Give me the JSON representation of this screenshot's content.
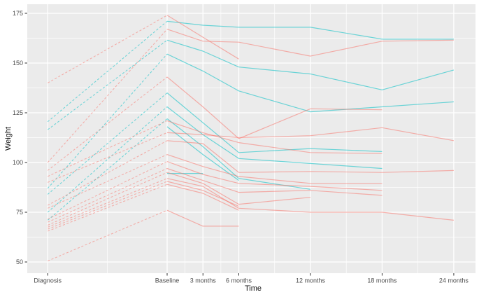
{
  "chart_data": {
    "type": "line",
    "title": "",
    "xlabel": "Time",
    "ylabel": "Weight",
    "x_categories": [
      "Diagnosis",
      "Baseline",
      "3 months",
      "6 months",
      "12 months",
      "18 months",
      "24 months"
    ],
    "x_months": [
      -10,
      0,
      3,
      6,
      12,
      18,
      24
    ],
    "yticks": [
      50,
      75,
      100,
      125,
      150,
      175
    ],
    "ylim": [
      44,
      180
    ],
    "grid": "major-and-minor-white-on-grey",
    "legend": "none",
    "line_style_note": "dashed between Diagnosis and Baseline, solid afterwards; missing values end the line",
    "colors": {
      "teal": "#00BFC4",
      "red": "#F8766D",
      "panel_bg": "#EBEBEB",
      "grid": "#FFFFFF",
      "tick_text": "#4d4d4d",
      "axis_title": "#111111"
    },
    "series": [
      {
        "name": "teal-1",
        "color": "teal",
        "values": [
          120.5,
          171,
          169,
          168,
          168,
          162,
          162
        ]
      },
      {
        "name": "teal-2",
        "color": "teal",
        "values": [
          116.5,
          161.5,
          156,
          148,
          144.5,
          136.5,
          146.5
        ]
      },
      {
        "name": "teal-3",
        "color": "teal",
        "values": [
          87,
          154.5,
          146,
          136,
          125.5,
          128,
          130.5
        ]
      },
      {
        "name": "teal-4",
        "color": "teal",
        "values": [
          84,
          135,
          120,
          105,
          107,
          105.5,
          null
        ]
      },
      {
        "name": "teal-5",
        "color": "teal",
        "values": [
          75,
          128,
          114,
          102,
          99.5,
          97,
          null
        ]
      },
      {
        "name": "teal-6",
        "color": "teal",
        "values": [
          71,
          122,
          108,
          92,
          86.5,
          null,
          null
        ]
      },
      {
        "name": "teal-7",
        "color": "teal",
        "values": [
          null,
          118,
          104,
          91,
          null,
          null,
          null
        ]
      },
      {
        "name": "teal-8",
        "color": "teal",
        "values": [
          null,
          94.5,
          94.5,
          null,
          null,
          null,
          null
        ]
      },
      {
        "name": "red-1",
        "color": "red",
        "values": [
          140,
          174,
          163,
          152,
          null,
          null,
          null
        ]
      },
      {
        "name": "red-2",
        "color": "red",
        "values": [
          100,
          167,
          161,
          160.5,
          153.5,
          161,
          161.5
        ]
      },
      {
        "name": "red-3",
        "color": "red",
        "values": [
          96,
          143,
          128,
          112,
          127,
          126.5,
          null
        ]
      },
      {
        "name": "red-4",
        "color": "red",
        "values": [
          93,
          121,
          115,
          110,
          105,
          104.5,
          null
        ]
      },
      {
        "name": "red-5",
        "color": "red",
        "values": [
          90,
          115,
          114,
          112.5,
          113.5,
          117.5,
          111
        ]
      },
      {
        "name": "red-6",
        "color": "red",
        "values": [
          78.5,
          111,
          109.5,
          95,
          95.5,
          95,
          96
        ]
      },
      {
        "name": "red-7",
        "color": "red",
        "values": [
          77,
          104,
          98,
          93,
          89.5,
          89.5,
          null
        ]
      },
      {
        "name": "red-8",
        "color": "red",
        "values": [
          71.5,
          100.5,
          94,
          89.5,
          88,
          86,
          null
        ]
      },
      {
        "name": "red-9",
        "color": "red",
        "values": [
          70,
          97,
          91,
          85,
          86,
          83.5,
          null
        ]
      },
      {
        "name": "red-10",
        "color": "red",
        "values": [
          68.5,
          95,
          89.5,
          79,
          82.5,
          null,
          null
        ]
      },
      {
        "name": "red-11",
        "color": "red",
        "values": [
          67.5,
          92,
          88,
          77,
          75,
          75,
          71
        ]
      },
      {
        "name": "red-12",
        "color": "red",
        "values": [
          66.5,
          90.5,
          86,
          78,
          null,
          null,
          null
        ]
      },
      {
        "name": "red-13",
        "color": "red",
        "values": [
          65.5,
          89,
          84.5,
          76,
          null,
          null,
          null
        ]
      },
      {
        "name": "red-14",
        "color": "red",
        "values": [
          50.5,
          76,
          68,
          68,
          null,
          null,
          null
        ]
      }
    ]
  }
}
